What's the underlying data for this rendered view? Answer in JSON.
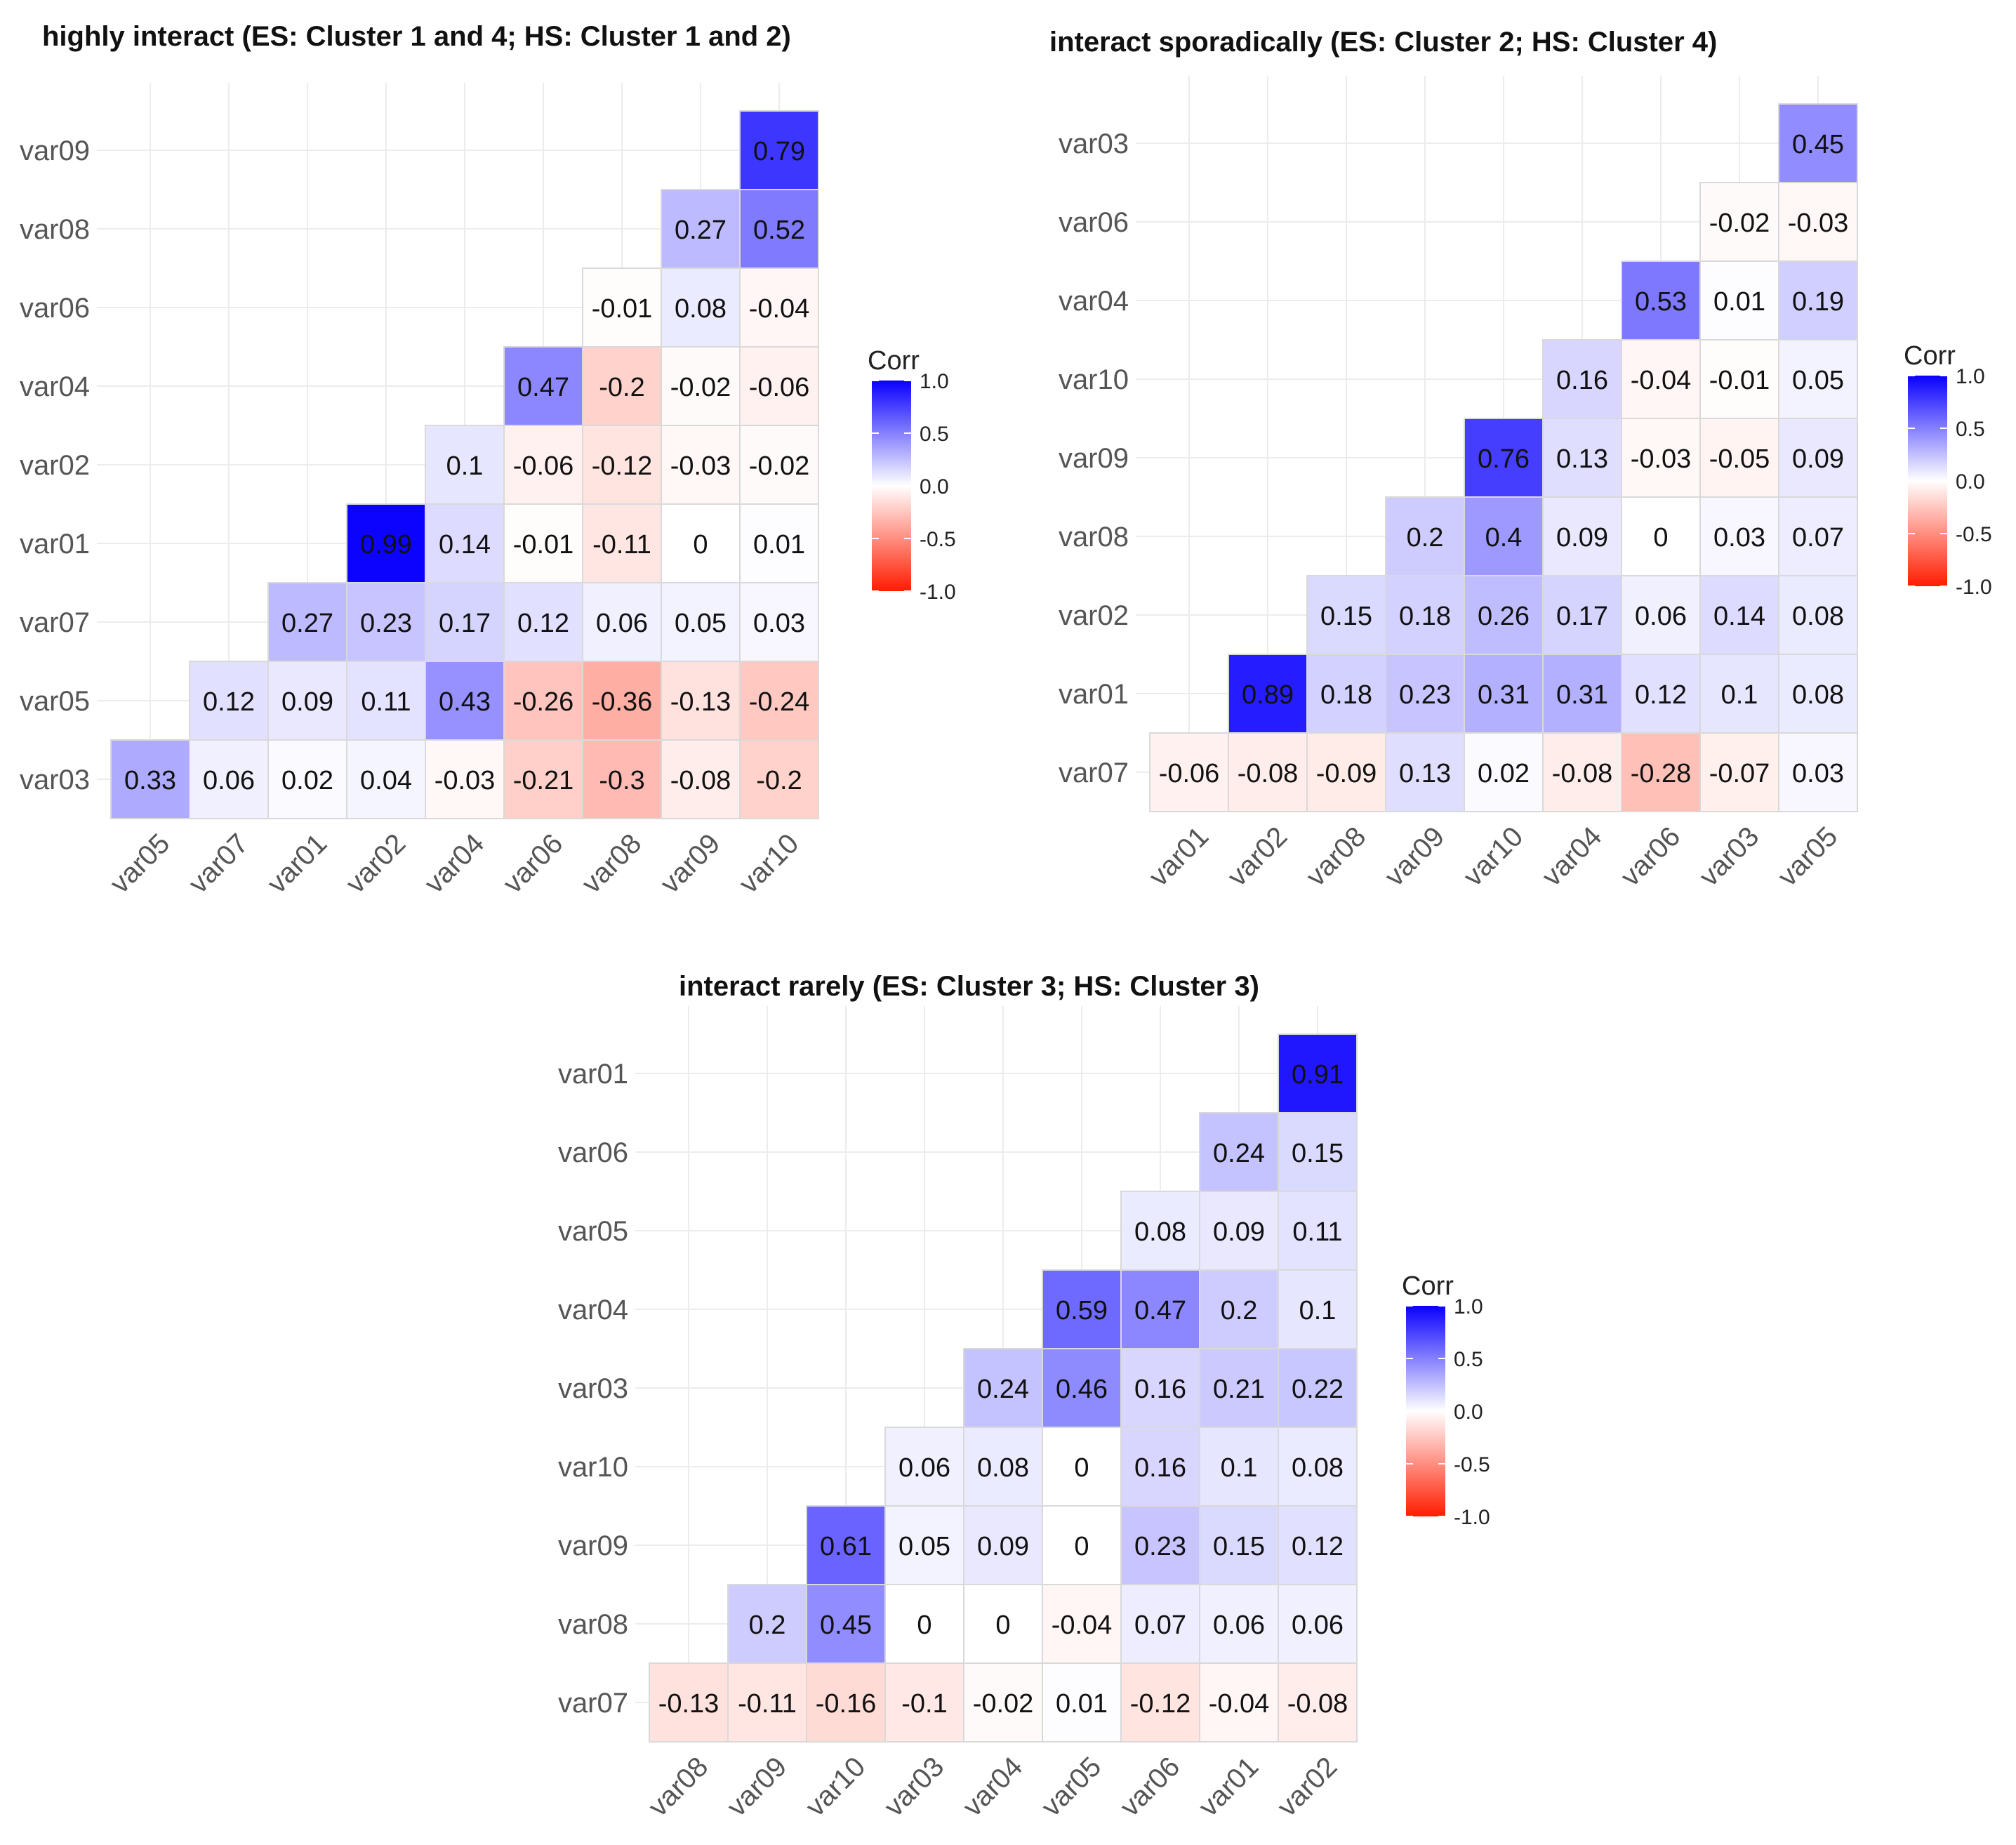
{
  "chart_data": [
    {
      "type": "heatmap",
      "title": "highly interact (ES: Cluster 1 and 4; HS: Cluster 1 and 2)",
      "x_labels": [
        "var05",
        "var07",
        "var01",
        "var02",
        "var04",
        "var06",
        "var08",
        "var09",
        "var10"
      ],
      "y_labels": [
        "var09",
        "var08",
        "var06",
        "var04",
        "var02",
        "var01",
        "var07",
        "var05",
        "var03"
      ],
      "cells": [
        {
          "x": "var10",
          "y": "var09",
          "value": 0.79,
          "label": "0.79"
        },
        {
          "x": "var09",
          "y": "var08",
          "value": 0.27,
          "label": "0.27"
        },
        {
          "x": "var10",
          "y": "var08",
          "value": 0.52,
          "label": "0.52"
        },
        {
          "x": "var08",
          "y": "var06",
          "value": -0.01,
          "label": "-0.01"
        },
        {
          "x": "var09",
          "y": "var06",
          "value": 0.08,
          "label": "0.08"
        },
        {
          "x": "var10",
          "y": "var06",
          "value": -0.04,
          "label": "-0.04"
        },
        {
          "x": "var06",
          "y": "var04",
          "value": 0.47,
          "label": "0.47"
        },
        {
          "x": "var08",
          "y": "var04",
          "value": -0.2,
          "label": "-0.2"
        },
        {
          "x": "var09",
          "y": "var04",
          "value": -0.02,
          "label": "-0.02"
        },
        {
          "x": "var10",
          "y": "var04",
          "value": -0.06,
          "label": "-0.06"
        },
        {
          "x": "var04",
          "y": "var02",
          "value": 0.1,
          "label": "0.1"
        },
        {
          "x": "var06",
          "y": "var02",
          "value": -0.06,
          "label": "-0.06"
        },
        {
          "x": "var08",
          "y": "var02",
          "value": -0.12,
          "label": "-0.12"
        },
        {
          "x": "var09",
          "y": "var02",
          "value": -0.03,
          "label": "-0.03"
        },
        {
          "x": "var10",
          "y": "var02",
          "value": -0.02,
          "label": "-0.02"
        },
        {
          "x": "var02",
          "y": "var01",
          "value": 0.99,
          "label": "0.99"
        },
        {
          "x": "var04",
          "y": "var01",
          "value": 0.14,
          "label": "0.14"
        },
        {
          "x": "var06",
          "y": "var01",
          "value": -0.01,
          "label": "-0.01"
        },
        {
          "x": "var08",
          "y": "var01",
          "value": -0.11,
          "label": "-0.11"
        },
        {
          "x": "var09",
          "y": "var01",
          "value": 0,
          "label": "0"
        },
        {
          "x": "var10",
          "y": "var01",
          "value": 0.01,
          "label": "0.01"
        },
        {
          "x": "var01",
          "y": "var07",
          "value": 0.27,
          "label": "0.27"
        },
        {
          "x": "var02",
          "y": "var07",
          "value": 0.23,
          "label": "0.23"
        },
        {
          "x": "var04",
          "y": "var07",
          "value": 0.17,
          "label": "0.17"
        },
        {
          "x": "var06",
          "y": "var07",
          "value": 0.12,
          "label": "0.12"
        },
        {
          "x": "var08",
          "y": "var07",
          "value": 0.06,
          "label": "0.06"
        },
        {
          "x": "var09",
          "y": "var07",
          "value": 0.05,
          "label": "0.05"
        },
        {
          "x": "var10",
          "y": "var07",
          "value": 0.03,
          "label": "0.03"
        },
        {
          "x": "var07",
          "y": "var05",
          "value": 0.12,
          "label": "0.12"
        },
        {
          "x": "var01",
          "y": "var05",
          "value": 0.09,
          "label": "0.09"
        },
        {
          "x": "var02",
          "y": "var05",
          "value": 0.11,
          "label": "0.11"
        },
        {
          "x": "var04",
          "y": "var05",
          "value": 0.43,
          "label": "0.43"
        },
        {
          "x": "var06",
          "y": "var05",
          "value": -0.26,
          "label": "-0.26"
        },
        {
          "x": "var08",
          "y": "var05",
          "value": -0.36,
          "label": "-0.36"
        },
        {
          "x": "var09",
          "y": "var05",
          "value": -0.13,
          "label": "-0.13"
        },
        {
          "x": "var10",
          "y": "var05",
          "value": -0.24,
          "label": "-0.24"
        },
        {
          "x": "var05",
          "y": "var03",
          "value": 0.33,
          "label": "0.33"
        },
        {
          "x": "var07",
          "y": "var03",
          "value": 0.06,
          "label": "0.06"
        },
        {
          "x": "var01",
          "y": "var03",
          "value": 0.02,
          "label": "0.02"
        },
        {
          "x": "var02",
          "y": "var03",
          "value": 0.04,
          "label": "0.04"
        },
        {
          "x": "var04",
          "y": "var03",
          "value": -0.03,
          "label": "-0.03"
        },
        {
          "x": "var06",
          "y": "var03",
          "value": -0.21,
          "label": "-0.21"
        },
        {
          "x": "var08",
          "y": "var03",
          "value": -0.3,
          "label": "-0.3"
        },
        {
          "x": "var09",
          "y": "var03",
          "value": -0.08,
          "label": "-0.08"
        },
        {
          "x": "var10",
          "y": "var03",
          "value": -0.2,
          "label": "-0.2"
        }
      ],
      "legend": {
        "title": "Corr",
        "ticks": [
          "1.0",
          "0.5",
          "0.0",
          "-0.5",
          "-1.0"
        ],
        "range": [
          -1,
          1
        ],
        "low_color": "#ff1d00",
        "mid_color": "#ffffff",
        "high_color": "#0a00ff"
      }
    },
    {
      "type": "heatmap",
      "title": "interact sporadically (ES: Cluster 2; HS: Cluster 4)",
      "x_labels": [
        "var01",
        "var02",
        "var08",
        "var09",
        "var10",
        "var04",
        "var06",
        "var03",
        "var05"
      ],
      "y_labels": [
        "var03",
        "var06",
        "var04",
        "var10",
        "var09",
        "var08",
        "var02",
        "var01",
        "var07"
      ],
      "cells": [
        {
          "x": "var05",
          "y": "var03",
          "value": 0.45,
          "label": "0.45"
        },
        {
          "x": "var03",
          "y": "var06",
          "value": -0.02,
          "label": "-0.02"
        },
        {
          "x": "var05",
          "y": "var06",
          "value": -0.03,
          "label": "-0.03"
        },
        {
          "x": "var06",
          "y": "var04",
          "value": 0.53,
          "label": "0.53"
        },
        {
          "x": "var03",
          "y": "var04",
          "value": 0.01,
          "label": "0.01"
        },
        {
          "x": "var05",
          "y": "var04",
          "value": 0.19,
          "label": "0.19"
        },
        {
          "x": "var04",
          "y": "var10",
          "value": 0.16,
          "label": "0.16"
        },
        {
          "x": "var06",
          "y": "var10",
          "value": -0.04,
          "label": "-0.04"
        },
        {
          "x": "var03",
          "y": "var10",
          "value": -0.01,
          "label": "-0.01"
        },
        {
          "x": "var05",
          "y": "var10",
          "value": 0.05,
          "label": "0.05"
        },
        {
          "x": "var10",
          "y": "var09",
          "value": 0.76,
          "label": "0.76"
        },
        {
          "x": "var04",
          "y": "var09",
          "value": 0.13,
          "label": "0.13"
        },
        {
          "x": "var06",
          "y": "var09",
          "value": -0.03,
          "label": "-0.03"
        },
        {
          "x": "var03",
          "y": "var09",
          "value": -0.05,
          "label": "-0.05"
        },
        {
          "x": "var05",
          "y": "var09",
          "value": 0.09,
          "label": "0.09"
        },
        {
          "x": "var09",
          "y": "var08",
          "value": 0.2,
          "label": "0.2"
        },
        {
          "x": "var10",
          "y": "var08",
          "value": 0.4,
          "label": "0.4"
        },
        {
          "x": "var04",
          "y": "var08",
          "value": 0.09,
          "label": "0.09"
        },
        {
          "x": "var06",
          "y": "var08",
          "value": 0,
          "label": "0"
        },
        {
          "x": "var03",
          "y": "var08",
          "value": 0.03,
          "label": "0.03"
        },
        {
          "x": "var05",
          "y": "var08",
          "value": 0.07,
          "label": "0.07"
        },
        {
          "x": "var08",
          "y": "var02",
          "value": 0.15,
          "label": "0.15"
        },
        {
          "x": "var09",
          "y": "var02",
          "value": 0.18,
          "label": "0.18"
        },
        {
          "x": "var10",
          "y": "var02",
          "value": 0.26,
          "label": "0.26"
        },
        {
          "x": "var04",
          "y": "var02",
          "value": 0.17,
          "label": "0.17"
        },
        {
          "x": "var06",
          "y": "var02",
          "value": 0.06,
          "label": "0.06"
        },
        {
          "x": "var03",
          "y": "var02",
          "value": 0.14,
          "label": "0.14"
        },
        {
          "x": "var05",
          "y": "var02",
          "value": 0.08,
          "label": "0.08"
        },
        {
          "x": "var02",
          "y": "var01",
          "value": 0.89,
          "label": "0.89"
        },
        {
          "x": "var08",
          "y": "var01",
          "value": 0.18,
          "label": "0.18"
        },
        {
          "x": "var09",
          "y": "var01",
          "value": 0.23,
          "label": "0.23"
        },
        {
          "x": "var10",
          "y": "var01",
          "value": 0.31,
          "label": "0.31"
        },
        {
          "x": "var04",
          "y": "var01",
          "value": 0.31,
          "label": "0.31"
        },
        {
          "x": "var06",
          "y": "var01",
          "value": 0.12,
          "label": "0.12"
        },
        {
          "x": "var03",
          "y": "var01",
          "value": 0.1,
          "label": "0.1"
        },
        {
          "x": "var05",
          "y": "var01",
          "value": 0.08,
          "label": "0.08"
        },
        {
          "x": "var01",
          "y": "var07",
          "value": -0.06,
          "label": "-0.06"
        },
        {
          "x": "var02",
          "y": "var07",
          "value": -0.08,
          "label": "-0.08"
        },
        {
          "x": "var08",
          "y": "var07",
          "value": -0.09,
          "label": "-0.09"
        },
        {
          "x": "var09",
          "y": "var07",
          "value": 0.13,
          "label": "0.13"
        },
        {
          "x": "var10",
          "y": "var07",
          "value": 0.02,
          "label": "0.02"
        },
        {
          "x": "var04",
          "y": "var07",
          "value": -0.08,
          "label": "-0.08"
        },
        {
          "x": "var06",
          "y": "var07",
          "value": -0.28,
          "label": "-0.28"
        },
        {
          "x": "var03",
          "y": "var07",
          "value": -0.07,
          "label": "-0.07"
        },
        {
          "x": "var05",
          "y": "var07",
          "value": 0.03,
          "label": "0.03"
        }
      ],
      "legend": {
        "title": "Corr",
        "ticks": [
          "1.0",
          "0.5",
          "0.0",
          "-0.5",
          "-1.0"
        ],
        "range": [
          -1,
          1
        ],
        "low_color": "#ff1d00",
        "mid_color": "#ffffff",
        "high_color": "#0a00ff"
      }
    },
    {
      "type": "heatmap",
      "title": "interact rarely (ES: Cluster 3; HS: Cluster 3)",
      "x_labels": [
        "var08",
        "var09",
        "var10",
        "var03",
        "var04",
        "var05",
        "var06",
        "var01",
        "var02"
      ],
      "y_labels": [
        "var01",
        "var06",
        "var05",
        "var04",
        "var03",
        "var10",
        "var09",
        "var08",
        "var07"
      ],
      "cells": [
        {
          "x": "var02",
          "y": "var01",
          "value": 0.91,
          "label": "0.91"
        },
        {
          "x": "var01",
          "y": "var06",
          "value": 0.24,
          "label": "0.24"
        },
        {
          "x": "var02",
          "y": "var06",
          "value": 0.15,
          "label": "0.15"
        },
        {
          "x": "var06",
          "y": "var05",
          "value": 0.08,
          "label": "0.08"
        },
        {
          "x": "var01",
          "y": "var05",
          "value": 0.09,
          "label": "0.09"
        },
        {
          "x": "var02",
          "y": "var05",
          "value": 0.11,
          "label": "0.11"
        },
        {
          "x": "var05",
          "y": "var04",
          "value": 0.59,
          "label": "0.59"
        },
        {
          "x": "var06",
          "y": "var04",
          "value": 0.47,
          "label": "0.47"
        },
        {
          "x": "var01",
          "y": "var04",
          "value": 0.2,
          "label": "0.2"
        },
        {
          "x": "var02",
          "y": "var04",
          "value": 0.1,
          "label": "0.1"
        },
        {
          "x": "var04",
          "y": "var03",
          "value": 0.24,
          "label": "0.24"
        },
        {
          "x": "var05",
          "y": "var03",
          "value": 0.46,
          "label": "0.46"
        },
        {
          "x": "var06",
          "y": "var03",
          "value": 0.16,
          "label": "0.16"
        },
        {
          "x": "var01",
          "y": "var03",
          "value": 0.21,
          "label": "0.21"
        },
        {
          "x": "var02",
          "y": "var03",
          "value": 0.22,
          "label": "0.22"
        },
        {
          "x": "var03",
          "y": "var10",
          "value": 0.06,
          "label": "0.06"
        },
        {
          "x": "var04",
          "y": "var10",
          "value": 0.08,
          "label": "0.08"
        },
        {
          "x": "var05",
          "y": "var10",
          "value": 0,
          "label": "0"
        },
        {
          "x": "var06",
          "y": "var10",
          "value": 0.16,
          "label": "0.16"
        },
        {
          "x": "var01",
          "y": "var10",
          "value": 0.1,
          "label": "0.1"
        },
        {
          "x": "var02",
          "y": "var10",
          "value": 0.08,
          "label": "0.08"
        },
        {
          "x": "var10",
          "y": "var09",
          "value": 0.61,
          "label": "0.61"
        },
        {
          "x": "var03",
          "y": "var09",
          "value": 0.05,
          "label": "0.05"
        },
        {
          "x": "var04",
          "y": "var09",
          "value": 0.09,
          "label": "0.09"
        },
        {
          "x": "var05",
          "y": "var09",
          "value": 0,
          "label": "0"
        },
        {
          "x": "var06",
          "y": "var09",
          "value": 0.23,
          "label": "0.23"
        },
        {
          "x": "var01",
          "y": "var09",
          "value": 0.15,
          "label": "0.15"
        },
        {
          "x": "var02",
          "y": "var09",
          "value": 0.12,
          "label": "0.12"
        },
        {
          "x": "var09",
          "y": "var08",
          "value": 0.2,
          "label": "0.2"
        },
        {
          "x": "var10",
          "y": "var08",
          "value": 0.45,
          "label": "0.45"
        },
        {
          "x": "var03",
          "y": "var08",
          "value": 0,
          "label": "0"
        },
        {
          "x": "var04",
          "y": "var08",
          "value": 0,
          "label": "0"
        },
        {
          "x": "var05",
          "y": "var08",
          "value": -0.04,
          "label": "-0.04"
        },
        {
          "x": "var06",
          "y": "var08",
          "value": 0.07,
          "label": "0.07"
        },
        {
          "x": "var01",
          "y": "var08",
          "value": 0.06,
          "label": "0.06"
        },
        {
          "x": "var02",
          "y": "var08",
          "value": 0.06,
          "label": "0.06"
        },
        {
          "x": "var08",
          "y": "var07",
          "value": -0.13,
          "label": "-0.13"
        },
        {
          "x": "var09",
          "y": "var07",
          "value": -0.11,
          "label": "-0.11"
        },
        {
          "x": "var10",
          "y": "var07",
          "value": -0.16,
          "label": "-0.16"
        },
        {
          "x": "var03",
          "y": "var07",
          "value": -0.1,
          "label": "-0.1"
        },
        {
          "x": "var04",
          "y": "var07",
          "value": -0.02,
          "label": "-0.02"
        },
        {
          "x": "var05",
          "y": "var07",
          "value": 0.01,
          "label": "0.01"
        },
        {
          "x": "var06",
          "y": "var07",
          "value": -0.12,
          "label": "-0.12"
        },
        {
          "x": "var01",
          "y": "var07",
          "value": -0.04,
          "label": "-0.04"
        },
        {
          "x": "var02",
          "y": "var07",
          "value": -0.08,
          "label": "-0.08"
        }
      ],
      "legend": {
        "title": "Corr",
        "ticks": [
          "1.0",
          "0.5",
          "0.0",
          "-0.5",
          "-1.0"
        ],
        "range": [
          -1,
          1
        ],
        "low_color": "#ff1d00",
        "mid_color": "#ffffff",
        "high_color": "#0a00ff"
      }
    }
  ]
}
